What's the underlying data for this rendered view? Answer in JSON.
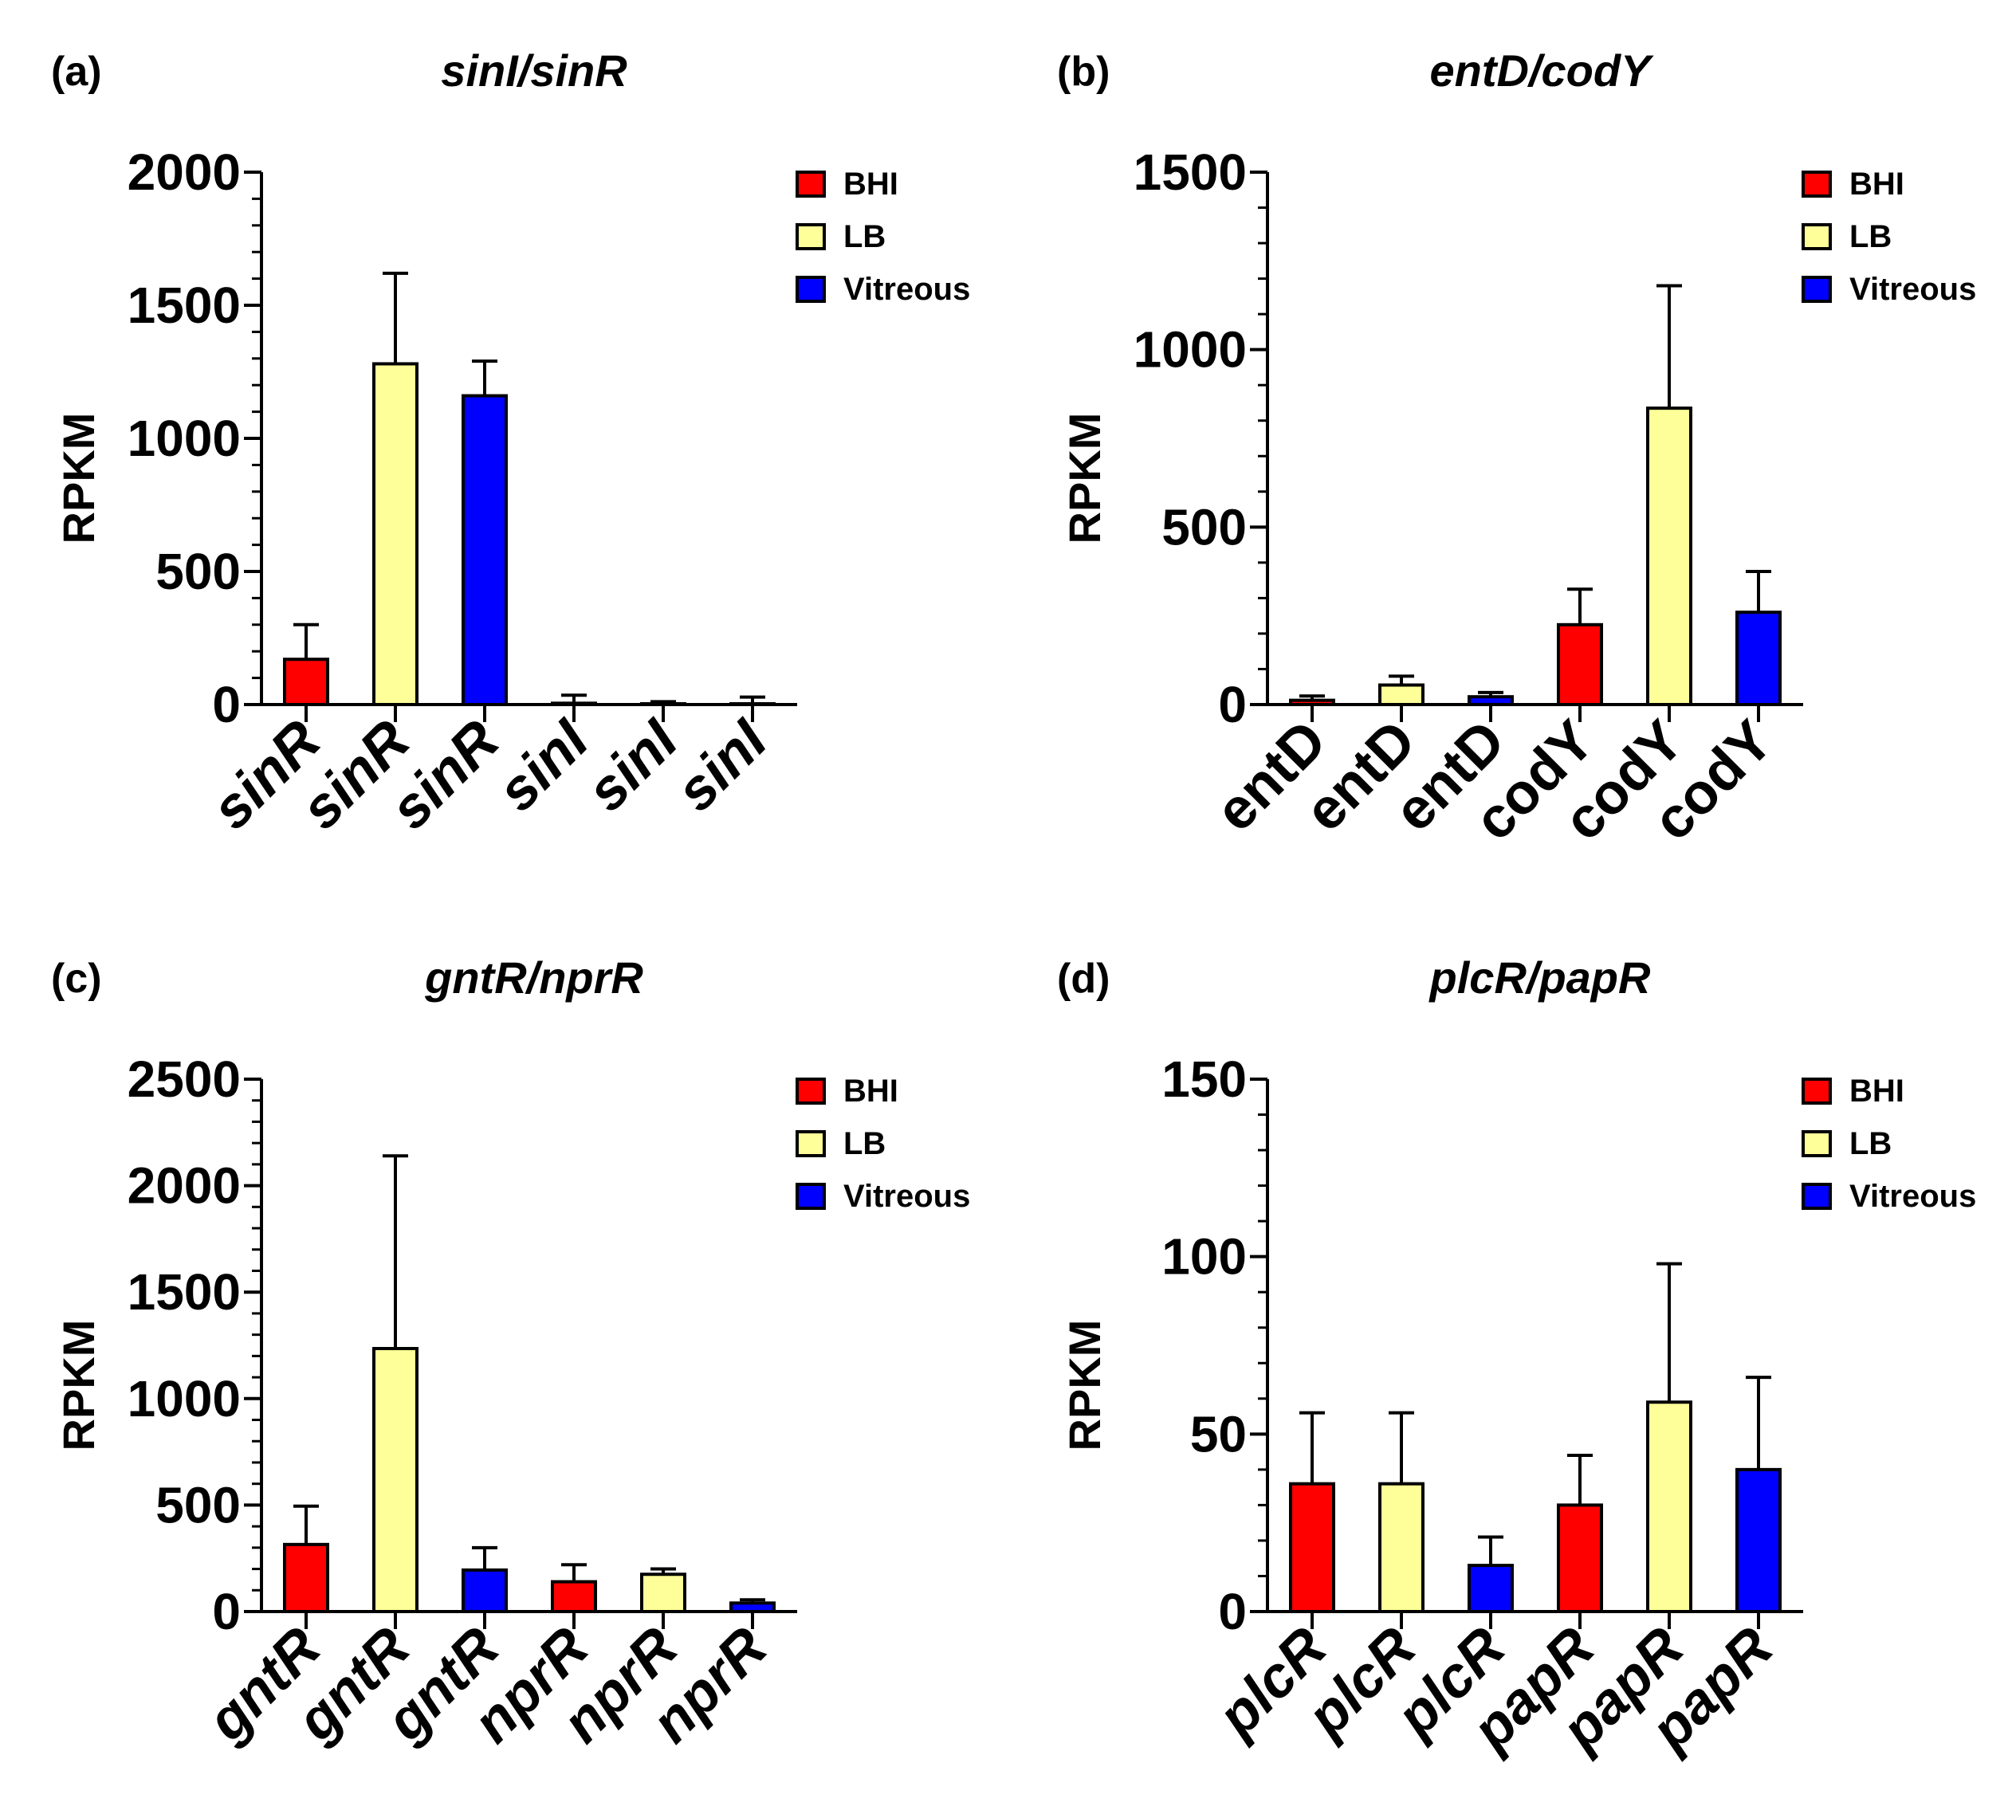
{
  "colors": {
    "BHI": "#ff0000",
    "LB": "#ffff99",
    "Vitreous": "#0000ff"
  },
  "chart_data": [
    {
      "type": "bar",
      "panel": "(a)",
      "title": "sinI/sinR",
      "ylabel": "RPKM",
      "ylim": [
        0,
        2000
      ],
      "yticks": [
        0,
        500,
        1000,
        1500,
        2000
      ],
      "italic_categories": true,
      "categories": [
        "sinR",
        "sinR",
        "sinR",
        "sinI",
        "sinI",
        "sinI"
      ],
      "conditions": [
        "BHI",
        "LB",
        "Vitreous",
        "BHI",
        "LB",
        "Vitreous"
      ],
      "values": [
        170,
        1280,
        1160,
        5,
        3,
        3
      ],
      "errors": [
        130,
        340,
        130,
        30,
        8,
        25
      ],
      "legend": [
        "BHI",
        "LB",
        "Vitreous"
      ],
      "legend_position": "top-right"
    },
    {
      "type": "bar",
      "panel": "(b)",
      "title": "entD/codY",
      "ylabel": "RPKM",
      "ylim": [
        0,
        1500
      ],
      "yticks": [
        0,
        500,
        1000,
        1500
      ],
      "italic_categories": false,
      "categories": [
        "entD",
        "entD",
        "entD",
        "codY",
        "codY",
        "codY"
      ],
      "conditions": [
        "BHI",
        "LB",
        "Vitreous",
        "BHI",
        "LB",
        "Vitreous"
      ],
      "values": [
        12,
        55,
        22,
        225,
        835,
        260
      ],
      "errors": [
        12,
        25,
        12,
        100,
        345,
        115
      ],
      "legend": [
        "BHI",
        "LB",
        "Vitreous"
      ],
      "legend_position": "top-right"
    },
    {
      "type": "bar",
      "panel": "(c)",
      "title": "gntR/nprR",
      "ylabel": "RPKM",
      "ylim": [
        0,
        2500
      ],
      "yticks": [
        0,
        500,
        1000,
        1500,
        2000,
        2500
      ],
      "italic_categories": true,
      "categories": [
        "gntR",
        "gntR",
        "gntR",
        "nprR",
        "nprR",
        "nprR"
      ],
      "conditions": [
        "BHI",
        "LB",
        "Vitreous",
        "BHI",
        "LB",
        "Vitreous"
      ],
      "values": [
        315,
        1235,
        195,
        140,
        175,
        40
      ],
      "errors": [
        180,
        905,
        105,
        80,
        25,
        15
      ],
      "legend": [
        "BHI",
        "LB",
        "Vitreous"
      ],
      "legend_position": "top-right"
    },
    {
      "type": "bar",
      "panel": "(d)",
      "title": "plcR/papR",
      "ylabel": "RPKM",
      "ylim": [
        0,
        150
      ],
      "yticks": [
        0,
        50,
        100,
        150
      ],
      "italic_categories": true,
      "categories": [
        "plcR",
        "plcR",
        "plcR",
        "papR",
        "papR",
        "papR"
      ],
      "conditions": [
        "BHI",
        "LB",
        "Vitreous",
        "BHI",
        "LB",
        "Vitreous"
      ],
      "values": [
        36,
        36,
        13,
        30,
        59,
        40
      ],
      "errors": [
        20,
        20,
        8,
        14,
        39,
        26
      ],
      "legend": [
        "BHI",
        "LB",
        "Vitreous"
      ],
      "legend_position": "top-right"
    }
  ]
}
